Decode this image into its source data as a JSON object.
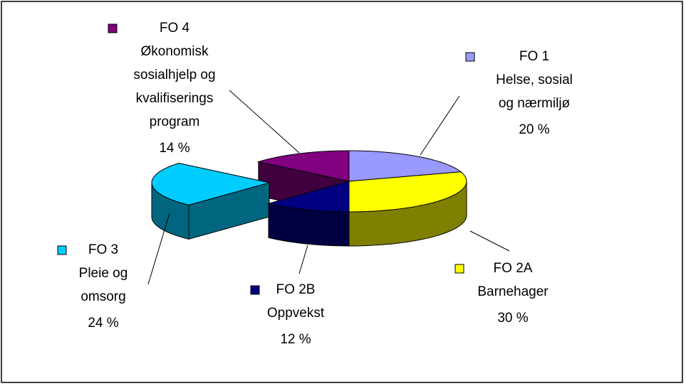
{
  "chart_data": {
    "type": "pie",
    "categories": [
      "FO 1",
      "FO 2A",
      "FO 2B",
      "FO 3",
      "FO 4"
    ],
    "descriptions": [
      "Helse, sosial og nærmiljø",
      "Barnehager",
      "Oppvekst",
      "Pleie og omsorg",
      "Økonomisk sosialhjelp og kvalifiserings program"
    ],
    "values": [
      20,
      30,
      12,
      24,
      14
    ],
    "value_labels": [
      "20 %",
      "30 %",
      "12 %",
      "24 %",
      "14 %"
    ],
    "colors": [
      "#9999ff",
      "#ffff00",
      "#000080",
      "#00ccff",
      "#800080"
    ]
  }
}
